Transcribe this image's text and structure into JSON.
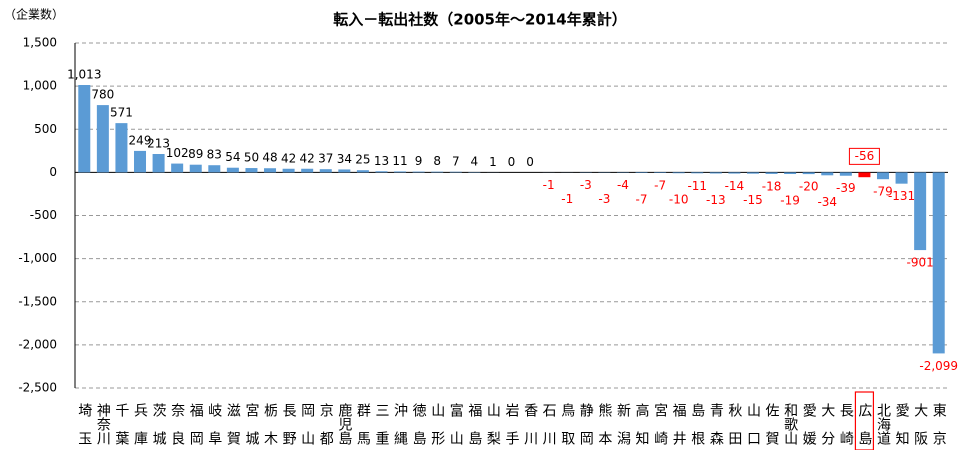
{
  "chart_data": {
    "type": "bar",
    "title": "転入－転出社数（2005年～2014年累計）",
    "y_label": "（企業数）",
    "categories": [
      "埼玉",
      "神奈川",
      "千葉",
      "兵庫",
      "茨城",
      "奈良",
      "福岡",
      "岐阜",
      "滋賀",
      "宮城",
      "栃木",
      "長野",
      "岡山",
      "京都",
      "鹿児島",
      "群馬",
      "三重",
      "沖縄",
      "徳島",
      "山形",
      "富山",
      "福島",
      "山梨",
      "岩手",
      "香川",
      "石川",
      "鳥取",
      "静岡",
      "熊本",
      "新潟",
      "高知",
      "宮崎",
      "福井",
      "島根",
      "青森",
      "秋田",
      "山口",
      "佐賀",
      "和歌山",
      "愛媛",
      "大分",
      "長崎",
      "広島",
      "北海道",
      "愛知",
      "大阪",
      "東京"
    ],
    "values": [
      1013,
      780,
      571,
      249,
      213,
      102,
      89,
      83,
      54,
      50,
      48,
      42,
      42,
      37,
      34,
      25,
      13,
      11,
      9,
      8,
      7,
      4,
      1,
      0,
      0,
      -1,
      -1,
      -3,
      -3,
      -4,
      -7,
      -7,
      -10,
      -11,
      -13,
      -14,
      -15,
      -18,
      -19,
      -20,
      -34,
      -39,
      -56,
      -79,
      -131,
      -901,
      -2099
    ],
    "value_labels": [
      "1,013",
      "780",
      "571",
      "249",
      "213",
      "102",
      "89",
      "83",
      "54",
      "50",
      "48",
      "42",
      "42",
      "37",
      "34",
      "25",
      "13",
      "11",
      "9",
      "8",
      "7",
      "4",
      "1",
      "0",
      "0",
      "-1",
      "-1",
      "-3",
      "-3",
      "-4",
      "-7",
      "-7",
      "-10",
      "-11",
      "-13",
      "-14",
      "-15",
      "-18",
      "-19",
      "-20",
      "-34",
      "-39",
      "-56",
      "-79",
      "-131",
      "-901",
      "-2,099"
    ],
    "color": "#5b9bd5",
    "colors": [
      "#5b9bd5",
      "#5b9bd5",
      "#5b9bd5",
      "#5b9bd5",
      "#5b9bd5",
      "#5b9bd5",
      "#5b9bd5",
      "#5b9bd5",
      "#5b9bd5",
      "#5b9bd5",
      "#5b9bd5",
      "#5b9bd5",
      "#5b9bd5",
      "#5b9bd5",
      "#5b9bd5",
      "#5b9bd5",
      "#5b9bd5",
      "#5b9bd5",
      "#5b9bd5",
      "#5b9bd5",
      "#5b9bd5",
      "#5b9bd5",
      "#5b9bd5",
      "#5b9bd5",
      "#5b9bd5",
      "#5b9bd5",
      "#5b9bd5",
      "#5b9bd5",
      "#5b9bd5",
      "#5b9bd5",
      "#5b9bd5",
      "#5b9bd5",
      "#5b9bd5",
      "#5b9bd5",
      "#5b9bd5",
      "#5b9bd5",
      "#5b9bd5",
      "#5b9bd5",
      "#5b9bd5",
      "#5b9bd5",
      "#5b9bd5",
      "#5b9bd5",
      "#ff0000",
      "#5b9bd5",
      "#5b9bd5",
      "#5b9bd5",
      "#5b9bd5"
    ],
    "ylim": [
      -2500,
      1500
    ],
    "yticks": [
      {
        "value": -2500,
        "label": "-2,500"
      },
      {
        "value": -2000,
        "label": "-2,000"
      },
      {
        "value": -1500,
        "label": "-1,500"
      },
      {
        "value": -1000,
        "label": "-1,000"
      },
      -500,
      0,
      500,
      {
        "value": 1000,
        "label": "1,000"
      },
      {
        "value": 1500,
        "label": "1,500"
      }
    ],
    "grid": true
  }
}
